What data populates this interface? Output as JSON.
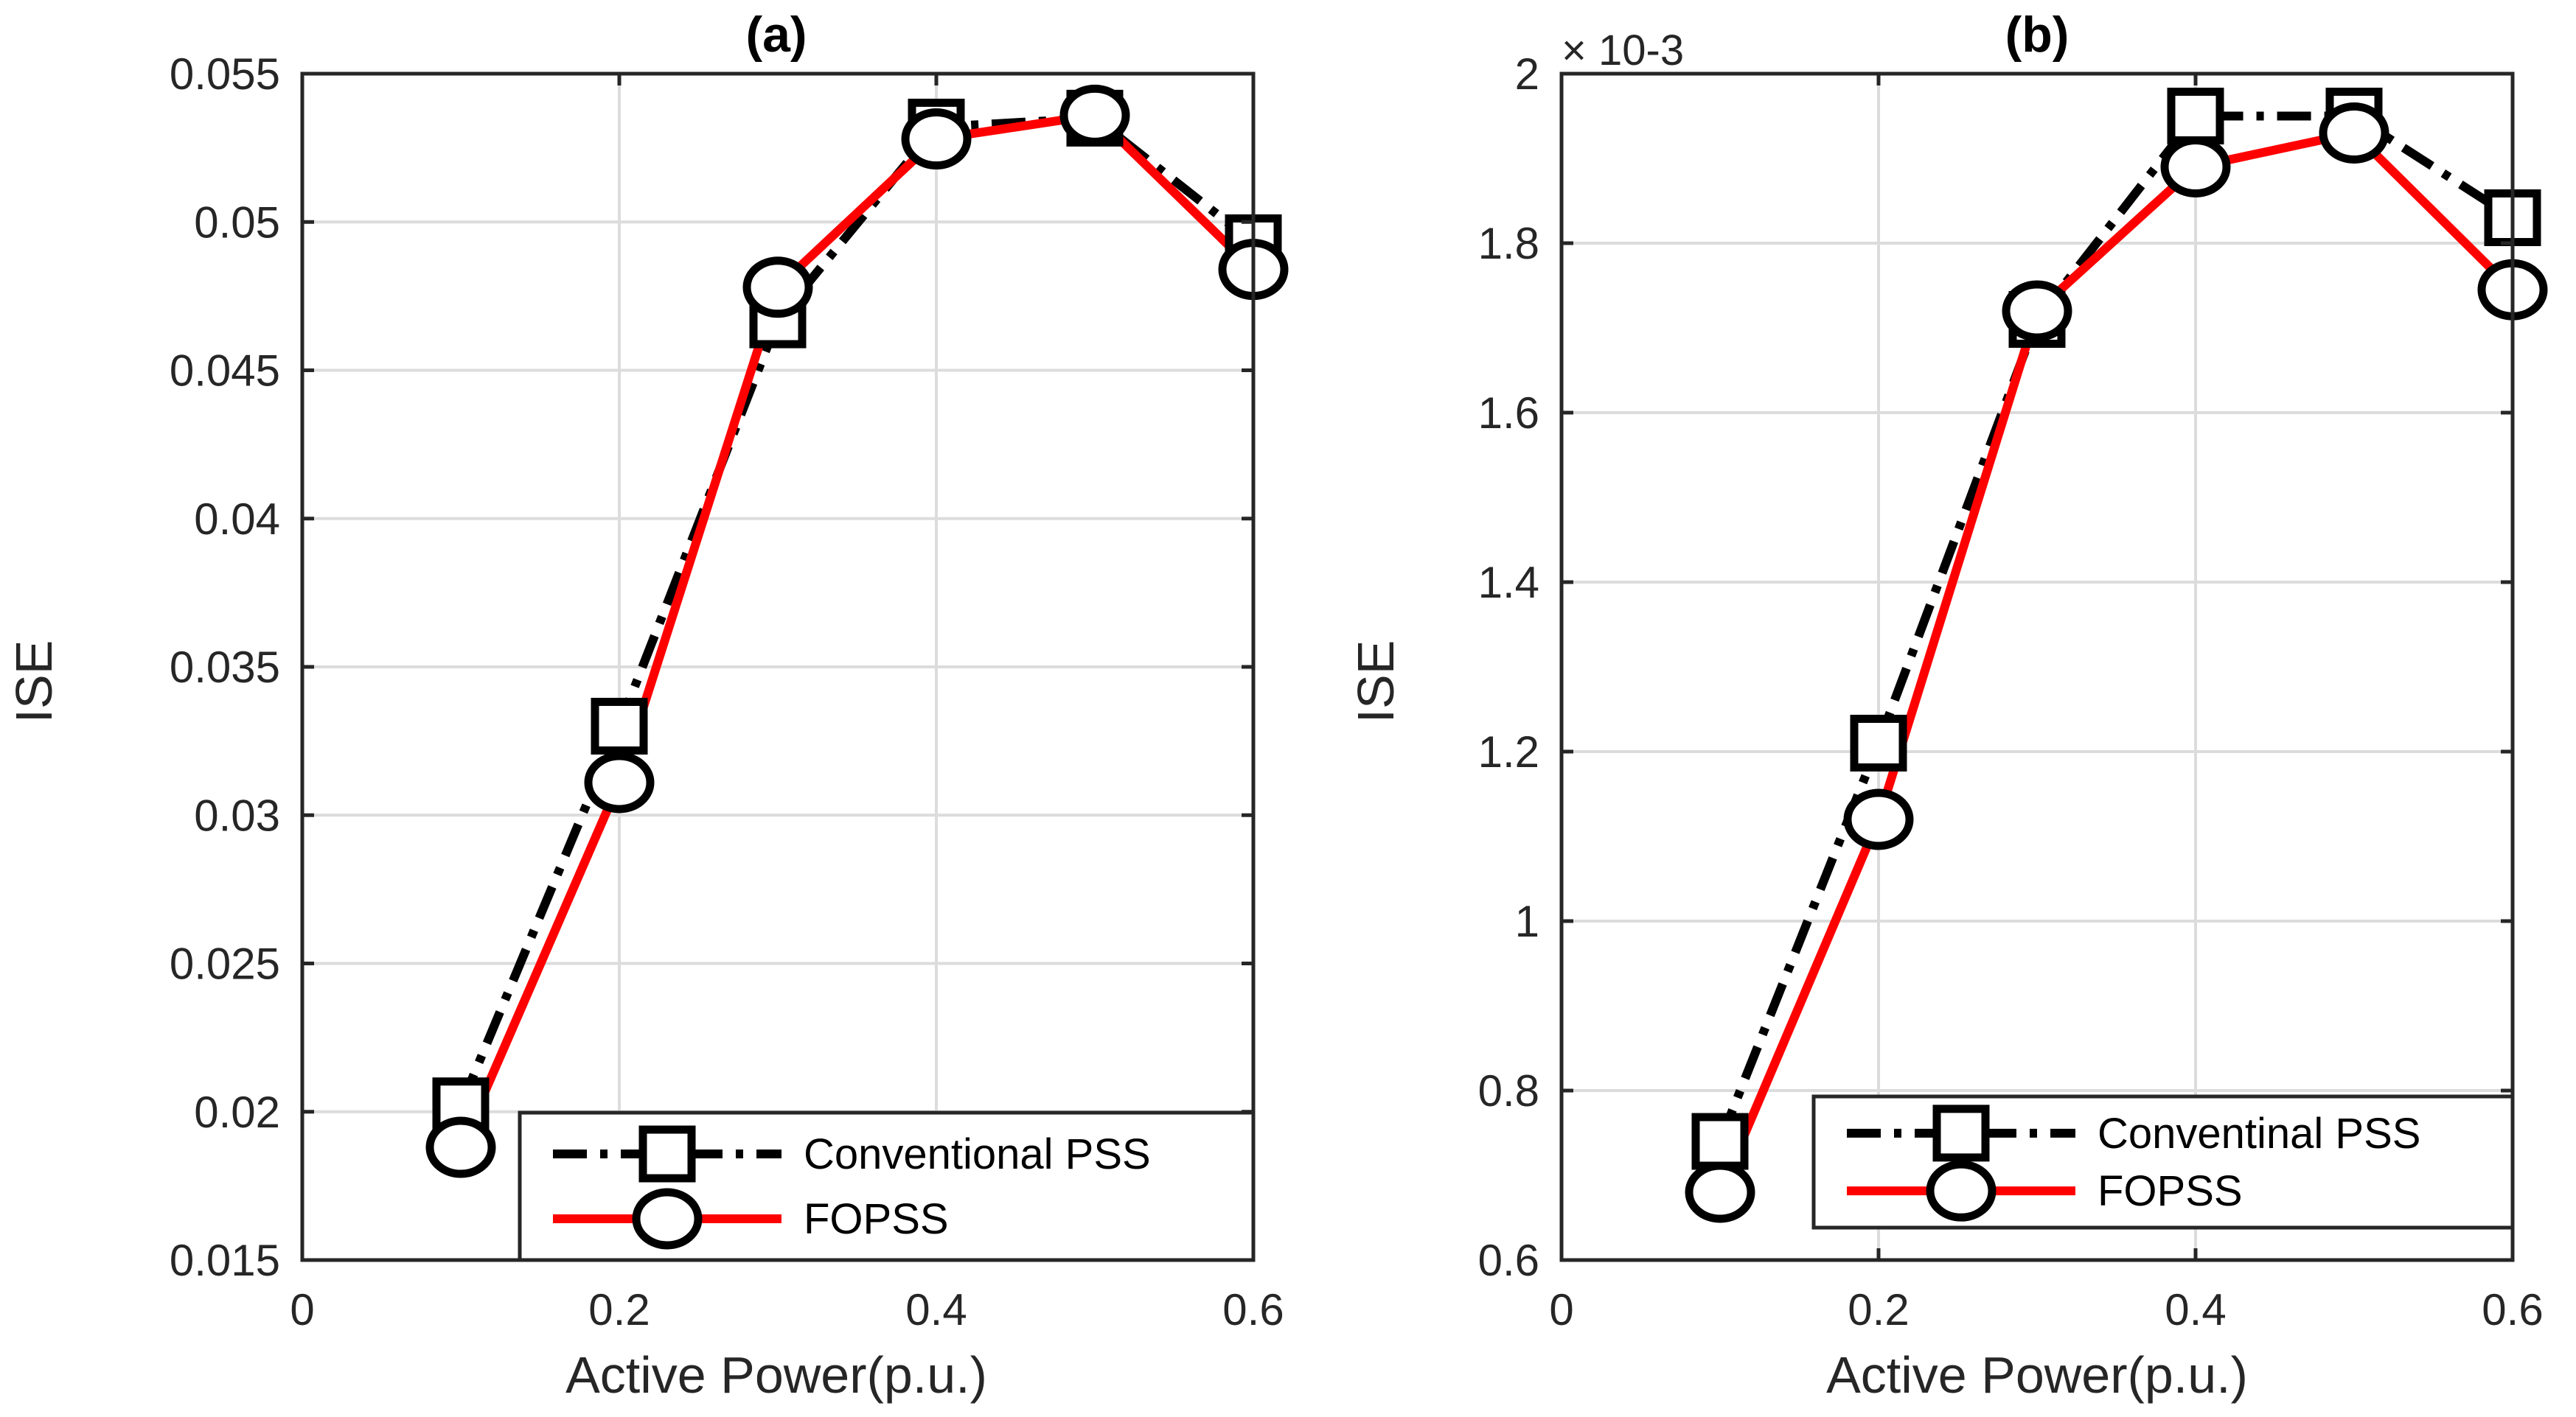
{
  "chart_data": [
    {
      "type": "line",
      "title": "(a)",
      "xlabel": "Active Power(p.u.)",
      "ylabel": "ISE",
      "xlim": [
        0,
        0.6
      ],
      "ylim": [
        0.015,
        0.055
      ],
      "xticks": [
        0,
        0.2,
        0.4,
        0.6
      ],
      "xtick_labels": [
        "0",
        "0.2",
        "0.4",
        "0.6"
      ],
      "yticks": [
        0.015,
        0.02,
        0.025,
        0.03,
        0.035,
        0.04,
        0.045,
        0.05,
        0.055
      ],
      "ytick_labels": [
        "0.015",
        "0.02",
        "0.025",
        "0.03",
        "0.035",
        "0.04",
        "0.045",
        "0.05",
        "0.055"
      ],
      "grid": true,
      "legend_position": "bottom-right",
      "exponent_label": "",
      "series": [
        {
          "name": "Conventional PSS",
          "color": "#000000",
          "marker": "square",
          "dash": "dash-dot",
          "x": [
            0.1,
            0.2,
            0.3,
            0.4,
            0.5,
            0.6
          ],
          "y": [
            0.0202,
            0.033,
            0.0467,
            0.0532,
            0.0535,
            0.0493
          ]
        },
        {
          "name": "FOPSS",
          "color": "#ff0000",
          "marker": "circle",
          "dash": "solid",
          "x": [
            0.1,
            0.2,
            0.3,
            0.4,
            0.5,
            0.6
          ],
          "y": [
            0.0188,
            0.0311,
            0.0478,
            0.0528,
            0.0536,
            0.0484
          ]
        }
      ]
    },
    {
      "type": "line",
      "title": "(b)",
      "xlabel": "Active Power(p.u.)",
      "ylabel": "ISE",
      "xlim": [
        0,
        0.6
      ],
      "ylim": [
        0.6,
        2.0
      ],
      "y_scale_exponent": -3,
      "exponent_label": "× 10-3",
      "xticks": [
        0,
        0.2,
        0.4,
        0.6
      ],
      "xtick_labels": [
        "0",
        "0.2",
        "0.4",
        "0.6"
      ],
      "yticks": [
        0.6,
        0.8,
        1.0,
        1.2,
        1.4,
        1.6,
        1.8,
        2.0
      ],
      "ytick_labels": [
        "0.6",
        "0.8",
        "1",
        "1.2",
        "1.4",
        "1.6",
        "1.8",
        "2"
      ],
      "grid": true,
      "legend_position": "bottom-right",
      "series": [
        {
          "name": "Conventinal PSS",
          "color": "#000000",
          "marker": "square",
          "dash": "dash-dot",
          "x": [
            0.1,
            0.2,
            0.3,
            0.4,
            0.5,
            0.6
          ],
          "y": [
            0.74,
            1.21,
            1.71,
            1.95,
            1.95,
            1.83
          ]
        },
        {
          "name": "FOPSS",
          "color": "#ff0000",
          "marker": "circle",
          "dash": "solid",
          "x": [
            0.1,
            0.2,
            0.3,
            0.4,
            0.5,
            0.6
          ],
          "y": [
            0.68,
            1.12,
            1.72,
            1.89,
            1.93,
            1.745
          ]
        }
      ]
    }
  ]
}
